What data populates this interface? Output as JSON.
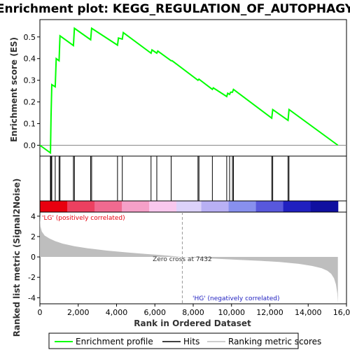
{
  "chart_data": {
    "type": "line",
    "title": "Enrichment plot: KEGG_REGULATION_OF_AUTOPHAGY",
    "top_panel": {
      "ylabel": "Enrichment score (ES)",
      "ylim": [
        -0.05,
        0.58
      ],
      "yticks": [
        "0.0",
        "0.1",
        "0.2",
        "0.3",
        "0.4",
        "0.5"
      ],
      "series": [
        {
          "name": "Enrichment profile",
          "color": "#00ff00",
          "x": [
            0,
            550,
            580,
            620,
            800,
            850,
            1000,
            1050,
            1750,
            1800,
            2650,
            2700,
            4050,
            4100,
            4300,
            4350,
            5800,
            5850,
            6100,
            6150,
            6850,
            6900,
            8250,
            8300,
            9000,
            9050,
            9750,
            9800,
            9900,
            9950,
            10050,
            10100,
            12100,
            12150,
            12950,
            13000,
            15550
          ],
          "values": [
            0.0,
            -0.035,
            0.13,
            0.28,
            0.27,
            0.4,
            0.39,
            0.505,
            0.46,
            0.54,
            0.487,
            0.54,
            0.462,
            0.495,
            0.49,
            0.52,
            0.425,
            0.44,
            0.425,
            0.435,
            0.39,
            0.39,
            0.3,
            0.305,
            0.258,
            0.265,
            0.225,
            0.24,
            0.235,
            0.245,
            0.245,
            0.258,
            0.125,
            0.165,
            0.115,
            0.165,
            0.0
          ]
        }
      ]
    },
    "hits": [
      550,
      580,
      620,
      800,
      1000,
      1050,
      1750,
      1800,
      2650,
      2700,
      4050,
      4300,
      5800,
      6100,
      6850,
      8250,
      8300,
      9000,
      9750,
      9900,
      10050,
      10100,
      12100,
      12150,
      12950,
      13000
    ],
    "bottom_panel": {
      "ylabel": "Ranked list metric (Signal2Noise)",
      "ylim": [
        -4.6,
        4.4
      ],
      "yticks": [
        "-4",
        "-2",
        "0",
        "2",
        "4"
      ],
      "fill_color": "#bebebe",
      "metric_x": [
        0,
        30,
        100,
        250,
        500,
        800,
        1200,
        1800,
        2500,
        3500,
        4500,
        5500,
        6200,
        7432,
        8500,
        9500,
        10500,
        11500,
        12500,
        13500,
        14200,
        14700,
        15000,
        15200,
        15350,
        15450,
        15520,
        15550
      ],
      "metric_values": [
        4.1,
        3.0,
        2.5,
        2.1,
        1.8,
        1.55,
        1.3,
        1.05,
        0.85,
        0.62,
        0.45,
        0.3,
        0.2,
        0.0,
        -0.12,
        -0.2,
        -0.3,
        -0.38,
        -0.5,
        -0.68,
        -0.88,
        -1.1,
        -1.35,
        -1.65,
        -2.1,
        -2.7,
        -3.6,
        -4.5
      ],
      "zero_cross_label": "Zero cross at 7432",
      "zero_cross": 7432,
      "pos_label": "'LG' (positively correlated)",
      "neg_label": "'HG' (negatively correlated)"
    },
    "xlabel": "Rank in Ordered Dataset",
    "xlim": [
      0,
      16000
    ],
    "xticks": [
      0,
      2000,
      4000,
      6000,
      8000,
      10000,
      12000,
      14000,
      16000
    ],
    "xtick_labels": [
      "0",
      "2,000",
      "4,000",
      "6,000",
      "8,000",
      "10,000",
      "12,000",
      "14,000",
      "16,000"
    ],
    "heatmap_colors": [
      "#e8000f",
      "#ec4060",
      "#f06a90",
      "#f5a0c8",
      "#f9c8ee",
      "#dcd2fa",
      "#b8b0f4",
      "#8890ee",
      "#5858dc",
      "#2020c0",
      "#1010a0"
    ],
    "heatmap_breaks": [
      0,
      2700,
      5500,
      8000,
      10000,
      11500,
      13000,
      14900,
      15550
    ],
    "legend": [
      {
        "label": "Enrichment profile",
        "color": "#00ff00"
      },
      {
        "label": "Hits",
        "color": "#000000"
      },
      {
        "label": "Ranking metric scores",
        "color": "#bebebe"
      }
    ]
  }
}
